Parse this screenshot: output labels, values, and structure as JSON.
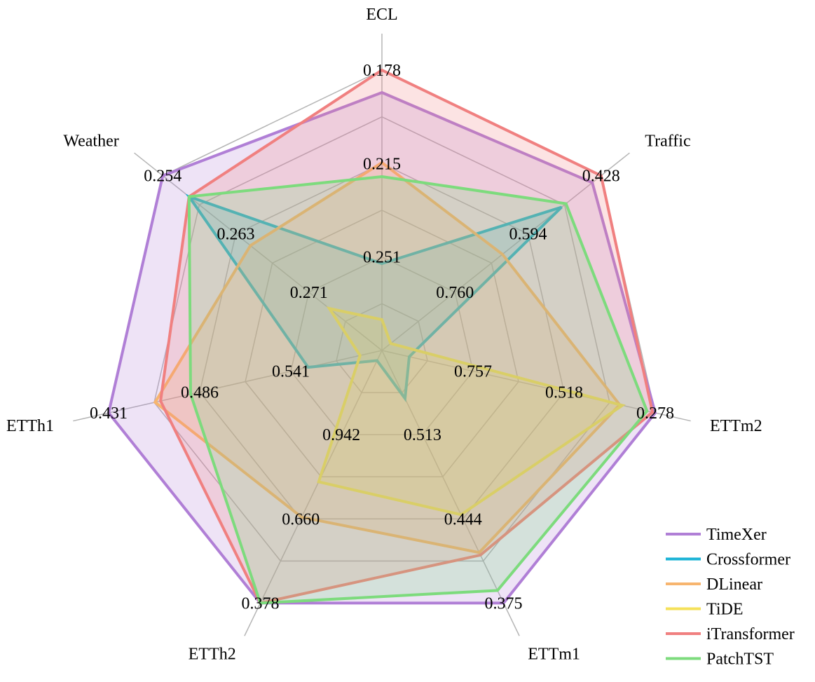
{
  "chart_data": {
    "type": "radar",
    "title": "",
    "axes": [
      "ECL",
      "Traffic",
      "ETTm2",
      "ETTm1",
      "ETTh2",
      "ETTh1",
      "Weather"
    ],
    "tick_labels": [
      [
        "0.251",
        "0.215",
        "0.178"
      ],
      [
        "0.760",
        "0.594",
        "0.428"
      ],
      [
        "0.757",
        "0.518",
        "0.278"
      ],
      [
        "0.513",
        "0.444",
        "0.375"
      ],
      [
        "0.942",
        "0.660",
        "0.378"
      ],
      [
        "0.541",
        "0.486",
        "0.431"
      ],
      [
        "0.271",
        "0.263",
        "0.254"
      ]
    ],
    "score_range": [
      0,
      1
    ],
    "grid": true,
    "grid_rings": 6,
    "legend_position": "bottom-right",
    "series": [
      {
        "name": "TimeXer",
        "color": "#b07fd6",
        "values": [
          0.92,
          0.96,
          1.0,
          1.0,
          1.0,
          1.0,
          1.0
        ]
      },
      {
        "name": "Crossformer",
        "color": "#1ab3d6",
        "values": [
          0.31,
          0.82,
          0.1,
          0.19,
          0.04,
          0.27,
          0.88
        ]
      },
      {
        "name": "DLinear",
        "color": "#f7b56f",
        "values": [
          0.67,
          0.55,
          0.87,
          0.8,
          0.66,
          0.83,
          0.6
        ]
      },
      {
        "name": "TiDE",
        "color": "#f5e15a",
        "values": [
          0.11,
          0.04,
          0.88,
          0.65,
          0.52,
          0.08,
          0.24
        ]
      },
      {
        "name": "iTransformer",
        "color": "#f08080",
        "values": [
          1.0,
          1.0,
          0.99,
          0.81,
          1.0,
          0.81,
          0.88
        ]
      },
      {
        "name": "PatchTST",
        "color": "#7ddb7d",
        "values": [
          0.62,
          0.84,
          0.97,
          0.95,
          1.0,
          0.7,
          0.88
        ]
      }
    ]
  }
}
